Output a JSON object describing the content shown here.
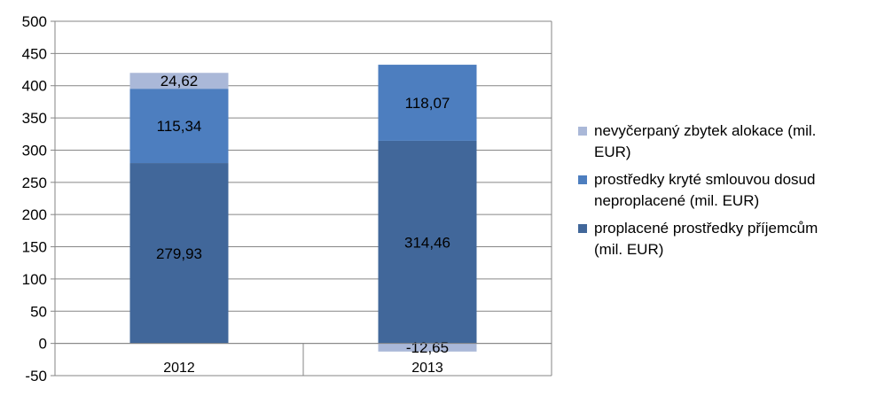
{
  "chart_data": {
    "type": "bar",
    "stacked": true,
    "categories": [
      "2012",
      "2013"
    ],
    "series": [
      {
        "name": "proplacené prostředky příjemcům (mil. EUR)",
        "values": [
          279.93,
          314.46
        ],
        "labels": [
          "279,93",
          "314,46"
        ],
        "color": "#41679a"
      },
      {
        "name": "prostředky kryté smlouvou dosud neproplacené (mil. EUR)",
        "values": [
          115.34,
          118.07
        ],
        "labels": [
          "115,34",
          "118,07"
        ],
        "color": "#4d7ebf"
      },
      {
        "name": "nevyčerpaný zbytek alokace (mil. EUR)",
        "values": [
          24.62,
          -12.65
        ],
        "labels": [
          "24,62",
          "-12,65"
        ],
        "color": "#aab8d8"
      }
    ],
    "ylim": [
      -50,
      500
    ],
    "yticks": [
      "-50",
      "0",
      "50",
      "100",
      "150",
      "200",
      "250",
      "300",
      "350",
      "400",
      "450",
      "500"
    ],
    "grid": true,
    "legend": "right",
    "gridColor": "#868686"
  },
  "legend": [
    {
      "line1": "nevyčerpaný zbytek alokace (mil.",
      "line2": "EUR)",
      "color": "#aab8d8"
    },
    {
      "line1": "prostředky kryté smlouvou dosud",
      "line2": "neproplacené (mil. EUR)",
      "color": "#4d7ebf"
    },
    {
      "line1": "proplacené prostředky příjemcům",
      "line2": "(mil. EUR)",
      "color": "#41679a"
    }
  ]
}
